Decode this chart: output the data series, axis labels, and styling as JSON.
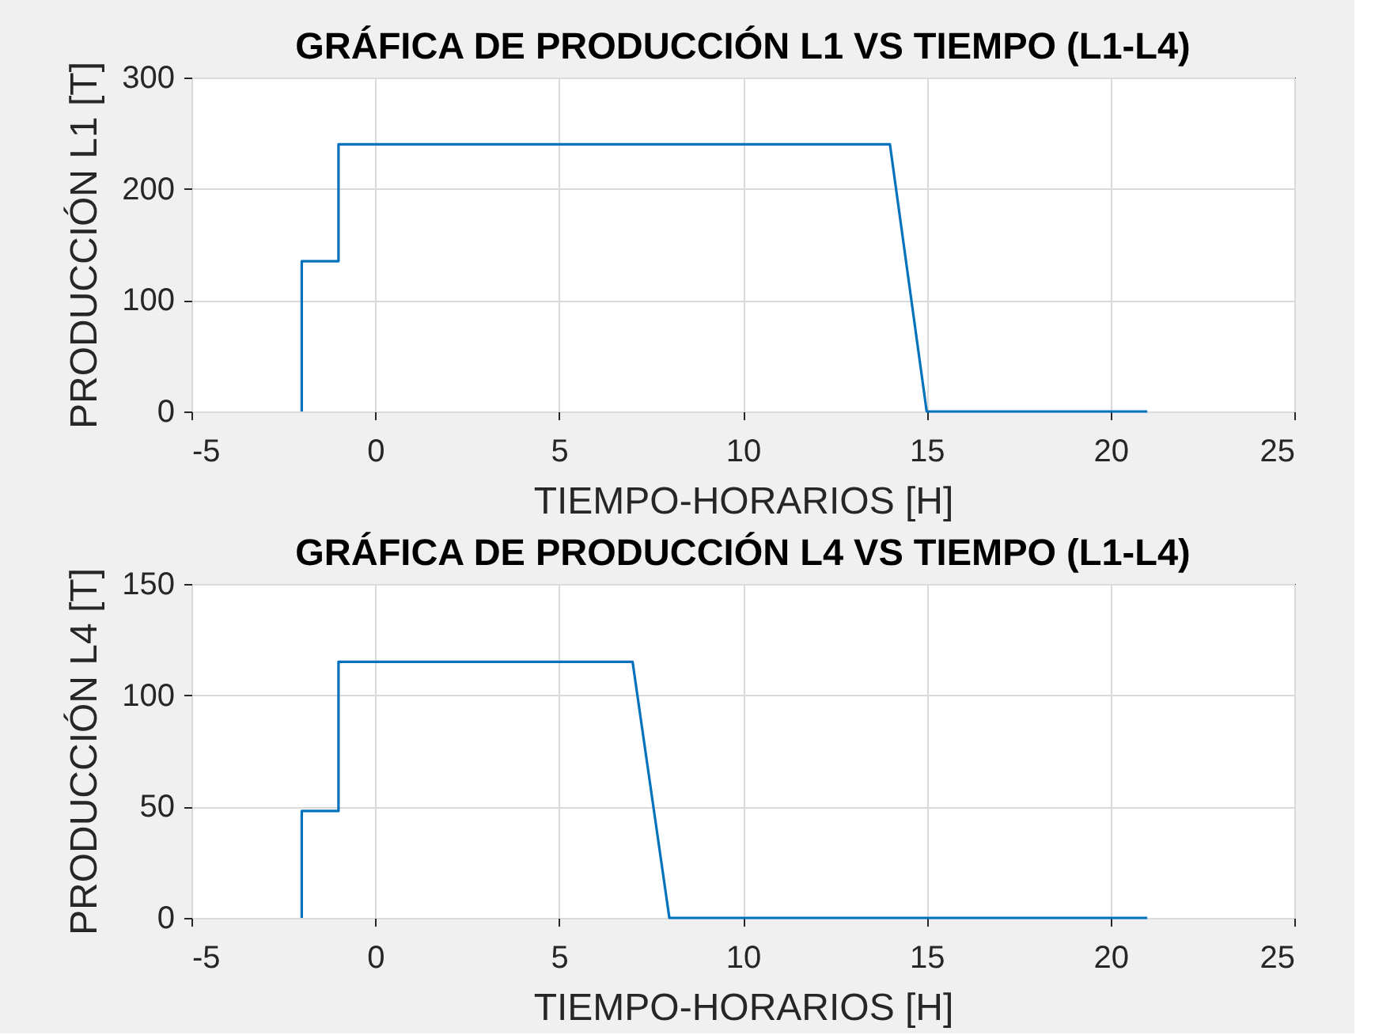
{
  "chart_data": [
    {
      "type": "line",
      "title": "GRÁFICA DE PRODUCCIÓN L1 VS TIEMPO (L1-L4)",
      "xlabel": "TIEMPO-HORARIOS [H]",
      "ylabel": "PRODUCCIÓN L1 [T]",
      "x": [
        -2,
        -2,
        -1,
        -1,
        14,
        15,
        21
      ],
      "series": [
        {
          "color": "#0072bd",
          "values": [
            0,
            135,
            135,
            240,
            240,
            0,
            0
          ]
        }
      ],
      "xlim": [
        -5,
        25
      ],
      "xticks": [
        -5,
        0,
        5,
        10,
        15,
        20,
        25
      ],
      "ylim": [
        0,
        300
      ],
      "yticks": [
        0,
        100,
        200,
        300
      ],
      "grid": true,
      "line_style": "solid"
    },
    {
      "type": "line",
      "title": "GRÁFICA DE PRODUCCIÓN L4 VS TIEMPO (L1-L4)",
      "xlabel": "TIEMPO-HORARIOS [H]",
      "ylabel": "PRODUCCIÓN L4 [T]",
      "x": [
        -2,
        -2,
        -1,
        -1,
        7,
        8,
        21
      ],
      "series": [
        {
          "color": "#0072bd",
          "values": [
            0,
            48,
            48,
            115,
            115,
            0,
            0
          ]
        }
      ],
      "xlim": [
        -5,
        25
      ],
      "xticks": [
        -5,
        0,
        5,
        10,
        15,
        20,
        25
      ],
      "ylim": [
        0,
        150
      ],
      "yticks": [
        0,
        50,
        100,
        150
      ],
      "grid": true,
      "line_style": "solid"
    }
  ]
}
